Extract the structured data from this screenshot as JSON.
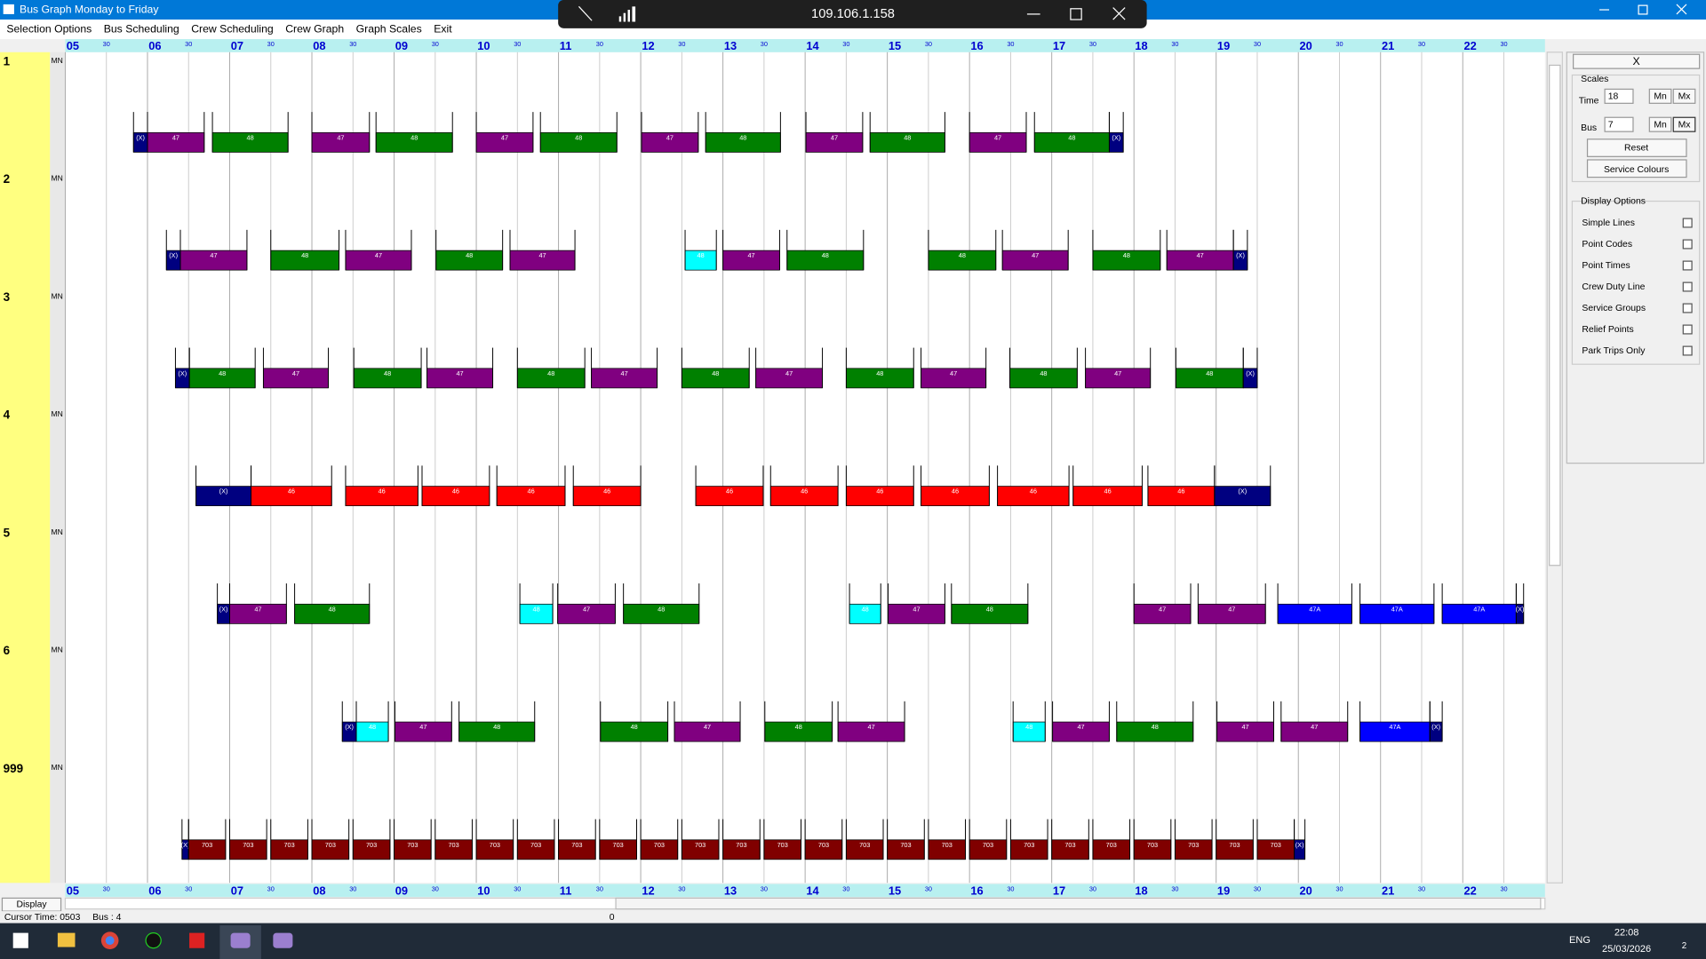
{
  "window": {
    "title": "Bus Graph Monday to Friday"
  },
  "remote": {
    "host": "109.106.1.158"
  },
  "menu": [
    "Selection Options",
    "Bus Scheduling",
    "Crew Scheduling",
    "Crew Graph",
    "Graph Scales",
    "Exit"
  ],
  "axis": {
    "start": 5,
    "end": 23,
    "hours": [
      "05",
      "06",
      "07",
      "08",
      "09",
      "10",
      "11",
      "12",
      "13",
      "14",
      "15",
      "16",
      "17",
      "18",
      "19",
      "20",
      "21",
      "22"
    ],
    "half": "30"
  },
  "colors": {
    "p": "#800080",
    "g": "#008000",
    "r": "#ff0000",
    "b": "#0000ff",
    "m": "#800000",
    "x": "#000080",
    "c": "#00ffff"
  },
  "rows": [
    {
      "bus": "1",
      "tag": "MN",
      "trips": [
        {
          "s": 5.83,
          "e": 6.0,
          "l": "(X)",
          "c": "x"
        },
        {
          "s": 6.0,
          "e": 6.69,
          "l": "47",
          "c": "p"
        },
        {
          "s": 6.79,
          "e": 7.71,
          "l": "48",
          "c": "g"
        },
        {
          "s": 8.0,
          "e": 8.7,
          "l": "47",
          "c": "p"
        },
        {
          "s": 8.78,
          "e": 9.71,
          "l": "48",
          "c": "g"
        },
        {
          "s": 10.0,
          "e": 10.69,
          "l": "47",
          "c": "p"
        },
        {
          "s": 10.78,
          "e": 11.71,
          "l": "48",
          "c": "g"
        },
        {
          "s": 12.01,
          "e": 12.7,
          "l": "47",
          "c": "p"
        },
        {
          "s": 12.79,
          "e": 13.7,
          "l": "48",
          "c": "g"
        },
        {
          "s": 14.01,
          "e": 14.7,
          "l": "47",
          "c": "p"
        },
        {
          "s": 14.79,
          "e": 15.7,
          "l": "48",
          "c": "g"
        },
        {
          "s": 16.0,
          "e": 16.69,
          "l": "47",
          "c": "p"
        },
        {
          "s": 16.79,
          "e": 17.7,
          "l": "48",
          "c": "g"
        },
        {
          "s": 17.7,
          "e": 17.87,
          "l": "(X)",
          "c": "x"
        }
      ]
    },
    {
      "bus": "2",
      "tag": "MN",
      "trips": [
        {
          "s": 6.23,
          "e": 6.4,
          "l": "(X)",
          "c": "x"
        },
        {
          "s": 6.4,
          "e": 7.21,
          "l": "47",
          "c": "p"
        },
        {
          "s": 7.5,
          "e": 8.33,
          "l": "48",
          "c": "g"
        },
        {
          "s": 8.41,
          "e": 9.21,
          "l": "47",
          "c": "p"
        },
        {
          "s": 9.51,
          "e": 10.32,
          "l": "48",
          "c": "g"
        },
        {
          "s": 10.41,
          "e": 11.2,
          "l": "47",
          "c": "p"
        },
        {
          "s": 12.54,
          "e": 12.92,
          "l": "48",
          "c": "c"
        },
        {
          "s": 13.0,
          "e": 13.69,
          "l": "47",
          "c": "p"
        },
        {
          "s": 13.78,
          "e": 14.71,
          "l": "48",
          "c": "g"
        },
        {
          "s": 15.5,
          "e": 16.32,
          "l": "48",
          "c": "g"
        },
        {
          "s": 16.4,
          "e": 17.2,
          "l": "47",
          "c": "p"
        },
        {
          "s": 17.5,
          "e": 18.32,
          "l": "48",
          "c": "g"
        },
        {
          "s": 18.4,
          "e": 19.21,
          "l": "47",
          "c": "p"
        },
        {
          "s": 19.21,
          "e": 19.38,
          "l": "(X)",
          "c": "x"
        }
      ]
    },
    {
      "bus": "3",
      "tag": "MN",
      "trips": [
        {
          "s": 6.34,
          "e": 6.51,
          "l": "(X)",
          "c": "x"
        },
        {
          "s": 6.51,
          "e": 7.31,
          "l": "48",
          "c": "g"
        },
        {
          "s": 7.41,
          "e": 8.2,
          "l": "47",
          "c": "p"
        },
        {
          "s": 8.51,
          "e": 9.33,
          "l": "48",
          "c": "g"
        },
        {
          "s": 9.4,
          "e": 10.2,
          "l": "47",
          "c": "p"
        },
        {
          "s": 10.5,
          "e": 11.32,
          "l": "48",
          "c": "g"
        },
        {
          "s": 11.4,
          "e": 12.2,
          "l": "47",
          "c": "p"
        },
        {
          "s": 12.5,
          "e": 13.32,
          "l": "48",
          "c": "g"
        },
        {
          "s": 13.4,
          "e": 14.21,
          "l": "47",
          "c": "p"
        },
        {
          "s": 14.5,
          "e": 15.32,
          "l": "48",
          "c": "g"
        },
        {
          "s": 15.41,
          "e": 16.2,
          "l": "47",
          "c": "p"
        },
        {
          "s": 16.49,
          "e": 17.31,
          "l": "48",
          "c": "g"
        },
        {
          "s": 17.41,
          "e": 18.2,
          "l": "47",
          "c": "p"
        },
        {
          "s": 18.51,
          "e": 19.33,
          "l": "48",
          "c": "g"
        },
        {
          "s": 19.33,
          "e": 19.5,
          "l": "(X)",
          "c": "x"
        }
      ]
    },
    {
      "bus": "4",
      "tag": "MN",
      "trips": [
        {
          "s": 6.59,
          "e": 7.26,
          "l": "(X)",
          "c": "x"
        },
        {
          "s": 7.26,
          "e": 8.24,
          "l": "46",
          "c": "r"
        },
        {
          "s": 8.41,
          "e": 9.29,
          "l": "46",
          "c": "r"
        },
        {
          "s": 9.34,
          "e": 10.16,
          "l": "46",
          "c": "r"
        },
        {
          "s": 10.25,
          "e": 11.08,
          "l": "46",
          "c": "r"
        },
        {
          "s": 11.18,
          "e": 12.0,
          "l": "46",
          "c": "r"
        },
        {
          "s": 12.67,
          "e": 13.49,
          "l": "46",
          "c": "r"
        },
        {
          "s": 13.58,
          "e": 14.4,
          "l": "46",
          "c": "r"
        },
        {
          "s": 14.5,
          "e": 15.32,
          "l": "46",
          "c": "r"
        },
        {
          "s": 15.41,
          "e": 16.24,
          "l": "46",
          "c": "r"
        },
        {
          "s": 16.34,
          "e": 17.21,
          "l": "46",
          "c": "r"
        },
        {
          "s": 17.26,
          "e": 18.1,
          "l": "46",
          "c": "r"
        },
        {
          "s": 18.17,
          "e": 18.98,
          "l": "46",
          "c": "r"
        },
        {
          "s": 18.98,
          "e": 19.66,
          "l": "(X)",
          "c": "x"
        }
      ]
    },
    {
      "bus": "5",
      "tag": "MN",
      "trips": [
        {
          "s": 6.85,
          "e": 7.0,
          "l": "(X)",
          "c": "x"
        },
        {
          "s": 7.0,
          "e": 7.69,
          "l": "47",
          "c": "p"
        },
        {
          "s": 7.79,
          "e": 8.7,
          "l": "48",
          "c": "g"
        },
        {
          "s": 10.53,
          "e": 10.93,
          "l": "48",
          "c": "c"
        },
        {
          "s": 10.99,
          "e": 11.69,
          "l": "47",
          "c": "p"
        },
        {
          "s": 11.79,
          "e": 12.71,
          "l": "48",
          "c": "g"
        },
        {
          "s": 14.54,
          "e": 14.92,
          "l": "48",
          "c": "c"
        },
        {
          "s": 15.01,
          "e": 15.7,
          "l": "47",
          "c": "p"
        },
        {
          "s": 15.78,
          "e": 16.71,
          "l": "48",
          "c": "g"
        },
        {
          "s": 18.0,
          "e": 18.69,
          "l": "47",
          "c": "p"
        },
        {
          "s": 18.78,
          "e": 19.6,
          "l": "47",
          "c": "p"
        },
        {
          "s": 19.75,
          "e": 20.65,
          "l": "47A",
          "c": "b"
        },
        {
          "s": 20.75,
          "e": 21.65,
          "l": "47A",
          "c": "b"
        },
        {
          "s": 21.75,
          "e": 22.65,
          "l": "47A",
          "c": "b"
        },
        {
          "s": 22.65,
          "e": 22.74,
          "l": "(X)",
          "c": "x"
        }
      ]
    },
    {
      "bus": "6",
      "tag": "MN",
      "trips": [
        {
          "s": 8.37,
          "e": 8.54,
          "l": "(X)",
          "c": "x"
        },
        {
          "s": 8.54,
          "e": 8.93,
          "l": "48",
          "c": "c"
        },
        {
          "s": 9.01,
          "e": 9.7,
          "l": "47",
          "c": "p"
        },
        {
          "s": 9.79,
          "e": 10.71,
          "l": "48",
          "c": "g"
        },
        {
          "s": 11.51,
          "e": 12.33,
          "l": "48",
          "c": "g"
        },
        {
          "s": 12.41,
          "e": 13.21,
          "l": "47",
          "c": "p"
        },
        {
          "s": 13.51,
          "e": 14.33,
          "l": "48",
          "c": "g"
        },
        {
          "s": 14.4,
          "e": 15.21,
          "l": "47",
          "c": "p"
        },
        {
          "s": 16.53,
          "e": 16.92,
          "l": "48",
          "c": "c"
        },
        {
          "s": 17.01,
          "e": 17.7,
          "l": "47",
          "c": "p"
        },
        {
          "s": 17.79,
          "e": 18.72,
          "l": "48",
          "c": "g"
        },
        {
          "s": 19.01,
          "e": 19.7,
          "l": "47",
          "c": "p"
        },
        {
          "s": 19.79,
          "e": 20.6,
          "l": "47",
          "c": "p"
        },
        {
          "s": 20.75,
          "e": 21.6,
          "l": "47A",
          "c": "b"
        },
        {
          "s": 21.6,
          "e": 21.75,
          "l": "(X)",
          "c": "x"
        }
      ]
    },
    {
      "bus": "999",
      "tag": "MN",
      "trips": [
        {
          "s": 6.42,
          "e": 6.5,
          "l": "(X)",
          "c": "x"
        },
        {
          "s": 6.5,
          "e": 6.95,
          "l": "703",
          "c": "m"
        },
        {
          "s": 7.0,
          "e": 7.45,
          "l": "703",
          "c": "m"
        },
        {
          "s": 7.5,
          "e": 7.95,
          "l": "703",
          "c": "m"
        },
        {
          "s": 8.0,
          "e": 8.45,
          "l": "703",
          "c": "m"
        },
        {
          "s": 8.5,
          "e": 8.95,
          "l": "703",
          "c": "m"
        },
        {
          "s": 9.0,
          "e": 9.45,
          "l": "703",
          "c": "m"
        },
        {
          "s": 9.5,
          "e": 9.95,
          "l": "703",
          "c": "m"
        },
        {
          "s": 10.0,
          "e": 10.45,
          "l": "703",
          "c": "m"
        },
        {
          "s": 10.5,
          "e": 10.95,
          "l": "703",
          "c": "m"
        },
        {
          "s": 11.0,
          "e": 11.45,
          "l": "703",
          "c": "m"
        },
        {
          "s": 11.5,
          "e": 11.95,
          "l": "703",
          "c": "m"
        },
        {
          "s": 12.0,
          "e": 12.45,
          "l": "703",
          "c": "m"
        },
        {
          "s": 12.5,
          "e": 12.95,
          "l": "703",
          "c": "m"
        },
        {
          "s": 13.0,
          "e": 13.45,
          "l": "703",
          "c": "m"
        },
        {
          "s": 13.5,
          "e": 13.95,
          "l": "703",
          "c": "m"
        },
        {
          "s": 14.0,
          "e": 14.45,
          "l": "703",
          "c": "m"
        },
        {
          "s": 14.5,
          "e": 14.95,
          "l": "703",
          "c": "m"
        },
        {
          "s": 15.0,
          "e": 15.45,
          "l": "703",
          "c": "m"
        },
        {
          "s": 15.5,
          "e": 15.95,
          "l": "703",
          "c": "m"
        },
        {
          "s": 16.0,
          "e": 16.45,
          "l": "703",
          "c": "m"
        },
        {
          "s": 16.5,
          "e": 16.95,
          "l": "703",
          "c": "m"
        },
        {
          "s": 17.0,
          "e": 17.45,
          "l": "703",
          "c": "m"
        },
        {
          "s": 17.5,
          "e": 17.95,
          "l": "703",
          "c": "m"
        },
        {
          "s": 18.0,
          "e": 18.45,
          "l": "703",
          "c": "m"
        },
        {
          "s": 18.5,
          "e": 18.95,
          "l": "703",
          "c": "m"
        },
        {
          "s": 19.0,
          "e": 19.45,
          "l": "703",
          "c": "m"
        },
        {
          "s": 19.5,
          "e": 19.95,
          "l": "703",
          "c": "m"
        },
        {
          "s": 19.95,
          "e": 20.08,
          "l": "(X)",
          "c": "x"
        }
      ]
    }
  ],
  "panel": {
    "close": "X",
    "scales": "Scales",
    "time_label": "Time",
    "time_value": "18",
    "bus_label": "Bus",
    "bus_value": "7",
    "mn": "Mn",
    "mx": "Mx",
    "reset": "Reset",
    "service_colours": "Service Colours",
    "display_options": "Display Options",
    "options": [
      "Simple Lines",
      "Point Codes",
      "Point Times",
      "Crew Duty Line",
      "Service Groups",
      "Relief Points",
      "Park Trips Only"
    ]
  },
  "status": {
    "display": "Display",
    "cursor": "Cursor Time: 0503",
    "bus": "Bus : 4",
    "pos": "0"
  },
  "taskbar": {
    "lang": "ENG",
    "time": "22:08",
    "date": "25/03/2026",
    "notifications": "2"
  }
}
